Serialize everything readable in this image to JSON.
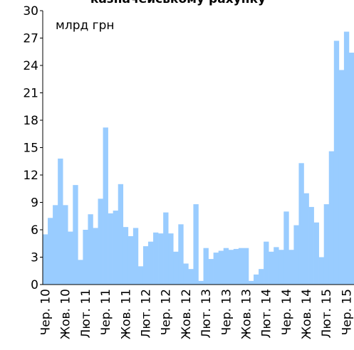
{
  "chart_data": {
    "type": "bar",
    "title": "казначейському рахунку",
    "unit_label": "млрд грн",
    "categories": [
      "Чер. 10",
      null,
      null,
      null,
      "Жов. 10",
      null,
      null,
      null,
      "Лют. 11",
      null,
      null,
      null,
      "Чер. 11",
      null,
      null,
      null,
      "Жов. 11",
      null,
      null,
      null,
      "Лют. 12",
      null,
      null,
      null,
      "Чер. 12",
      null,
      null,
      null,
      "Жов. 12",
      null,
      null,
      null,
      "Лют. 13",
      null,
      null,
      null,
      "Чер. 13",
      null,
      null,
      null,
      "Жов. 13",
      null,
      null,
      null,
      "Лют. 14",
      null,
      null,
      null,
      "Чер. 14",
      null,
      null,
      null,
      "Жов. 14",
      null,
      null,
      null,
      "Лют. 15",
      null,
      null,
      null,
      "Чер. 15",
      null
    ],
    "values": [
      5.5,
      7.3,
      8.7,
      13.8,
      8.7,
      5.8,
      10.9,
      2.7,
      6.0,
      7.7,
      6.2,
      9.4,
      17.2,
      7.8,
      8.1,
      11.0,
      6.3,
      5.3,
      6.2,
      2.0,
      4.2,
      4.7,
      5.7,
      5.6,
      7.9,
      5.6,
      3.6,
      6.6,
      2.3,
      1.7,
      8.8,
      0.4,
      4.0,
      2.8,
      3.5,
      3.7,
      4.0,
      3.8,
      3.9,
      4.0,
      4.0,
      0.4,
      1.1,
      1.7,
      4.7,
      3.6,
      4.1,
      3.8,
      8.0,
      3.8,
      6.5,
      13.3,
      10.0,
      8.5,
      6.8,
      3.0,
      8.8,
      14.6,
      26.7,
      23.5,
      27.7,
      25.4
    ],
    "color": "#99ccff",
    "ylim": [
      0,
      30
    ],
    "yticks": [
      0,
      3,
      6,
      9,
      12,
      15,
      18,
      21,
      24,
      27,
      30
    ],
    "grid": false
  }
}
